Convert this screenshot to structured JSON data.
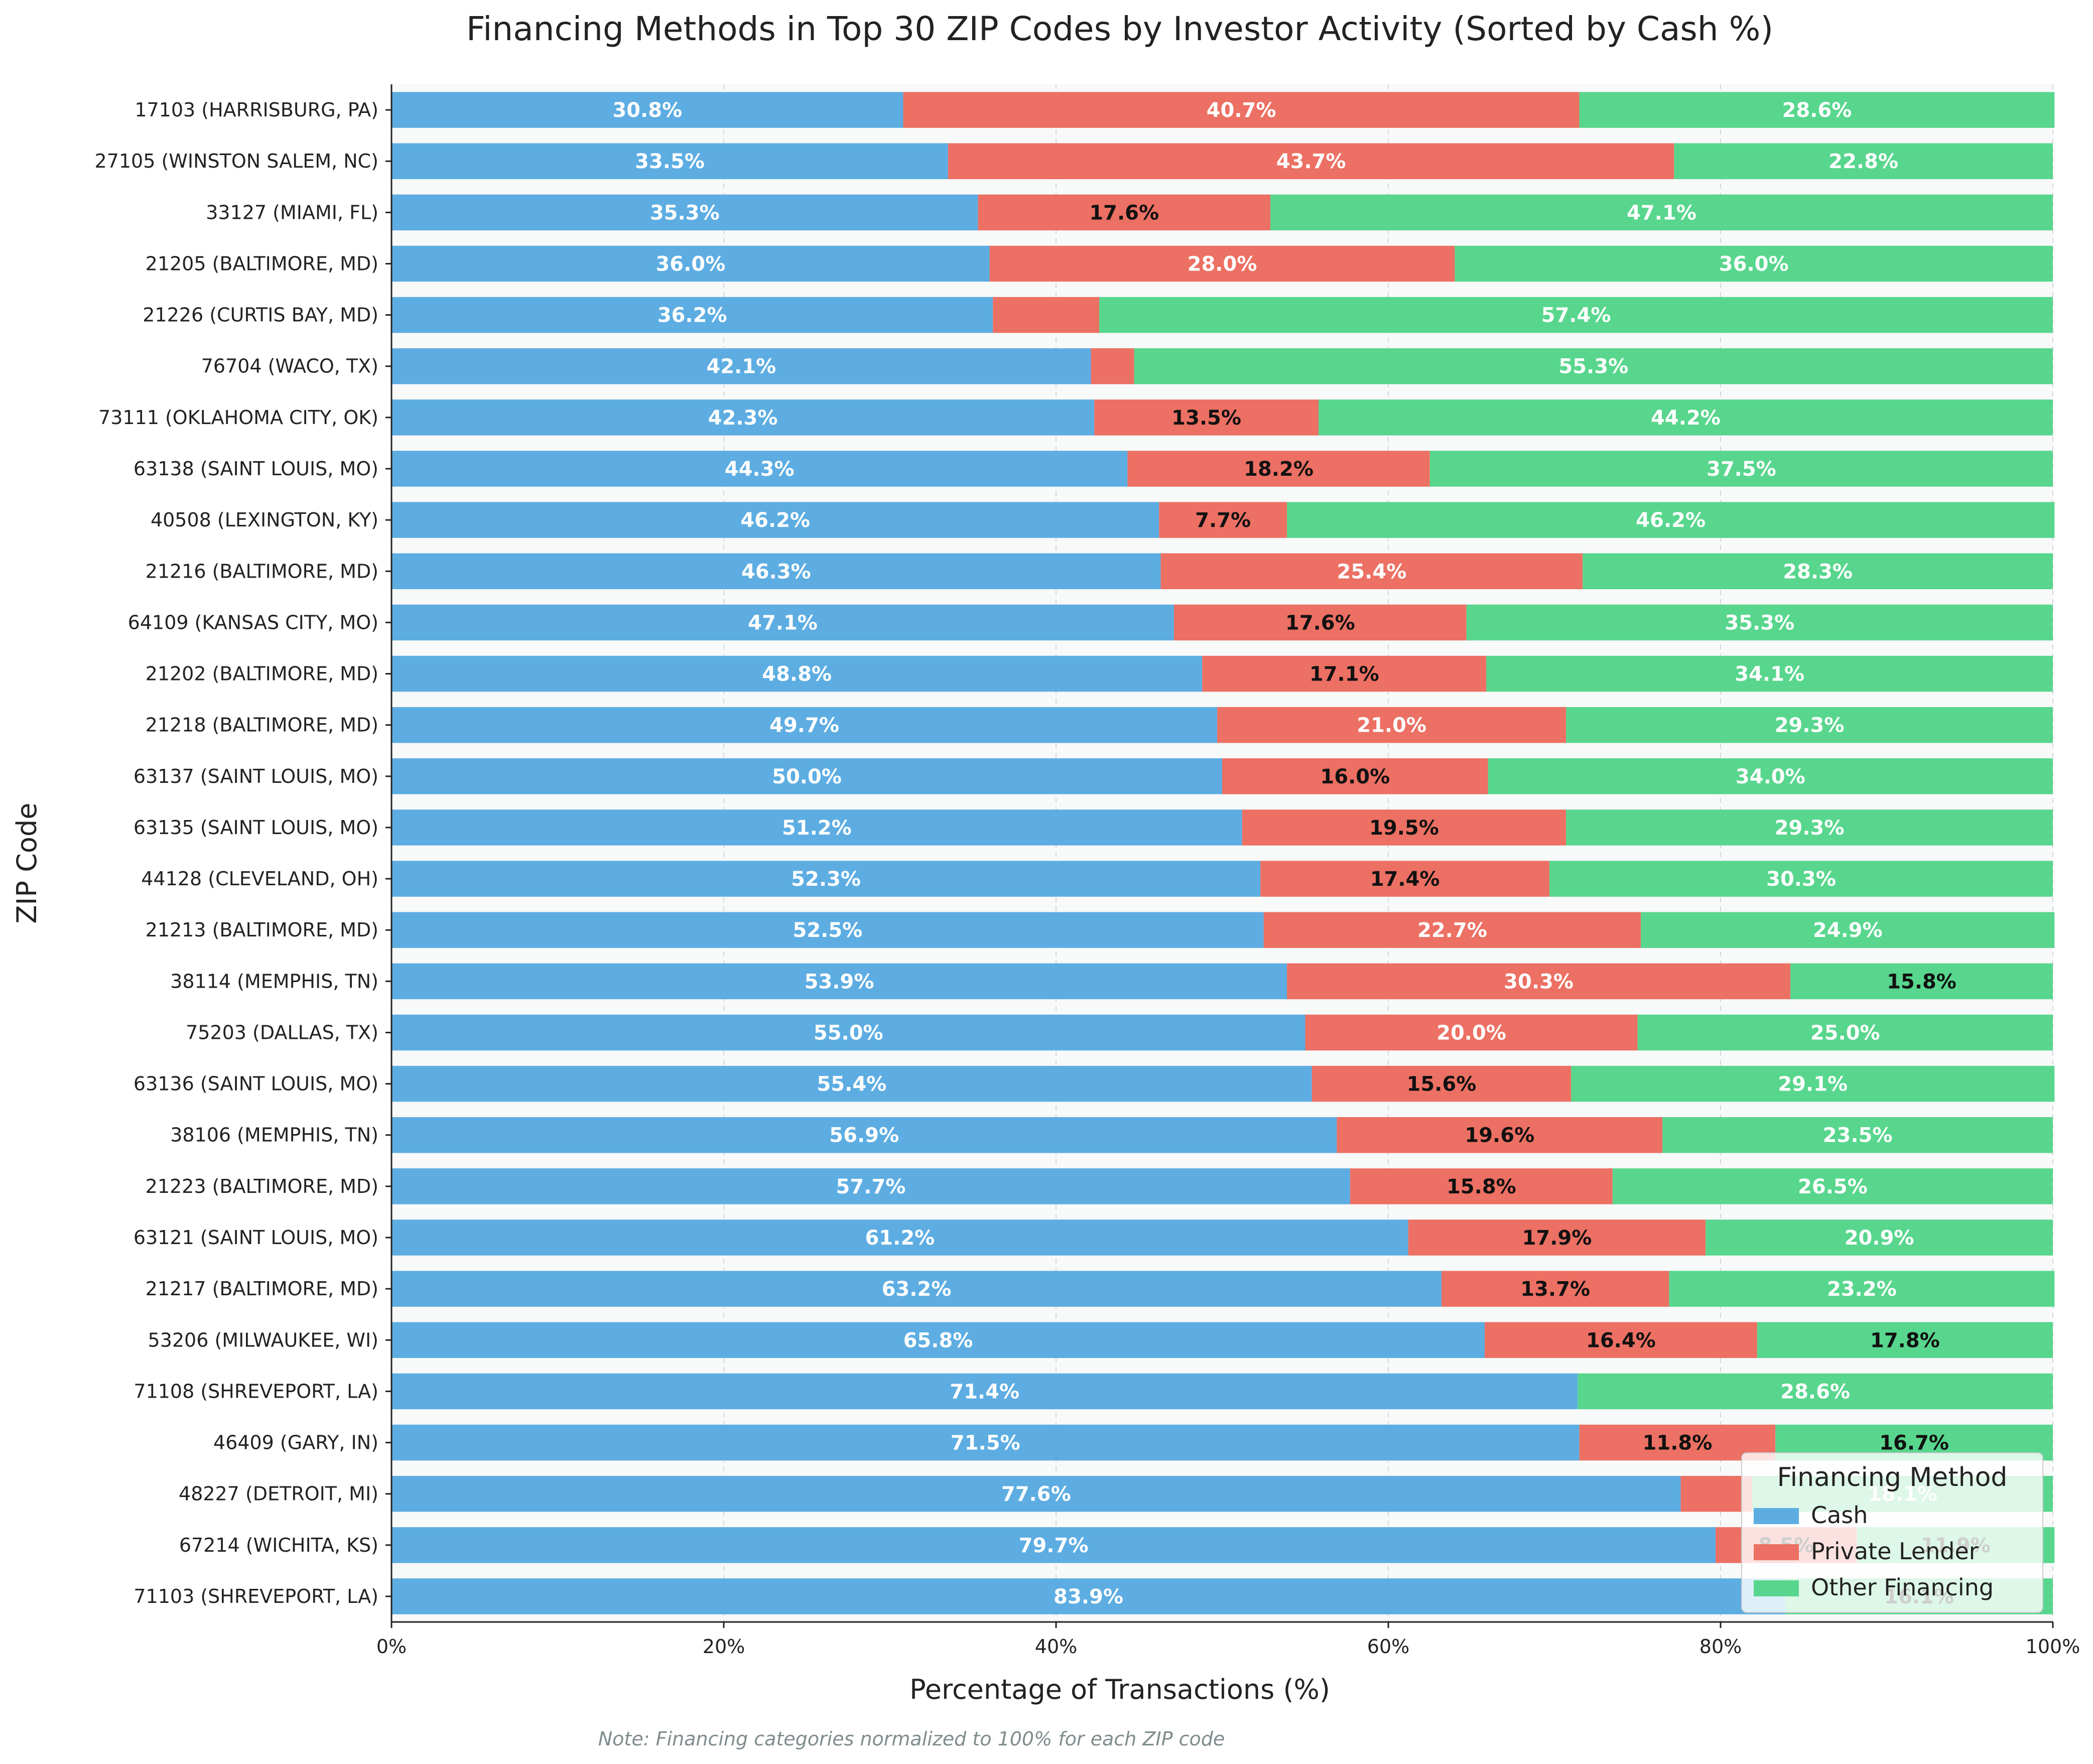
{
  "chart_data": {
    "type": "bar",
    "orientation": "horizontal",
    "stacked": true,
    "title": "Financing Methods in Top 30 ZIP Codes by Investor Activity (Sorted by Cash %)",
    "xlabel": "Percentage of Transactions (%)",
    "ylabel": "ZIP Code",
    "xlim": [
      0,
      100
    ],
    "xticks": [
      "0%",
      "20%",
      "40%",
      "60%",
      "80%",
      "100%"
    ],
    "xtick_values": [
      0,
      20,
      40,
      60,
      80,
      100
    ],
    "grid": true,
    "note": "Note: Financing categories normalized to 100% for each ZIP code",
    "legend": {
      "title": "Financing Method",
      "placement": "bottom-right"
    },
    "categories": [
      "17103 (HARRISBURG, PA)",
      "27105 (WINSTON SALEM, NC)",
      "33127 (MIAMI, FL)",
      "21205 (BALTIMORE, MD)",
      "21226 (CURTIS BAY, MD)",
      "76704 (WACO, TX)",
      "73111 (OKLAHOMA CITY, OK)",
      "63138 (SAINT LOUIS, MO)",
      "40508 (LEXINGTON, KY)",
      "21216 (BALTIMORE, MD)",
      "64109 (KANSAS CITY, MO)",
      "21202 (BALTIMORE, MD)",
      "21218 (BALTIMORE, MD)",
      "63137 (SAINT LOUIS, MO)",
      "63135 (SAINT LOUIS, MO)",
      "44128 (CLEVELAND, OH)",
      "21213 (BALTIMORE, MD)",
      "38114 (MEMPHIS, TN)",
      "75203 (DALLAS, TX)",
      "63136 (SAINT LOUIS, MO)",
      "38106 (MEMPHIS, TN)",
      "21223 (BALTIMORE, MD)",
      "63121 (SAINT LOUIS, MO)",
      "21217 (BALTIMORE, MD)",
      "53206 (MILWAUKEE, WI)",
      "71108 (SHREVEPORT, LA)",
      "46409 (GARY, IN)",
      "48227 (DETROIT, MI)",
      "67214 (WICHITA, KS)",
      "71103 (SHREVEPORT, LA)"
    ],
    "series": [
      {
        "name": "Cash",
        "color": "#5DADE2",
        "values": [
          30.8,
          33.5,
          35.3,
          36.0,
          36.2,
          42.1,
          42.3,
          44.3,
          46.2,
          46.3,
          47.1,
          48.8,
          49.7,
          50.0,
          51.2,
          52.3,
          52.5,
          53.9,
          55.0,
          55.4,
          56.9,
          57.7,
          61.2,
          63.2,
          65.8,
          71.4,
          71.5,
          77.6,
          79.7,
          83.9
        ],
        "labels": [
          "30.8%",
          "33.5%",
          "35.3%",
          "36.0%",
          "36.2%",
          "42.1%",
          "42.3%",
          "44.3%",
          "46.2%",
          "46.3%",
          "47.1%",
          "48.8%",
          "49.7%",
          "50.0%",
          "51.2%",
          "52.3%",
          "52.5%",
          "53.9%",
          "55.0%",
          "55.4%",
          "56.9%",
          "57.7%",
          "61.2%",
          "63.2%",
          "65.8%",
          "71.4%",
          "71.5%",
          "77.6%",
          "79.7%",
          "83.9%"
        ]
      },
      {
        "name": "Private Lender",
        "color": "#EC7063",
        "values": [
          40.7,
          43.7,
          17.6,
          28.0,
          6.4,
          2.6,
          13.5,
          18.2,
          7.7,
          25.4,
          17.6,
          17.1,
          21.0,
          16.0,
          19.5,
          17.4,
          22.7,
          30.3,
          20.0,
          15.6,
          19.6,
          15.8,
          17.9,
          13.7,
          16.4,
          0.0,
          11.8,
          4.3,
          8.5,
          0.0
        ],
        "labels": [
          "40.7%",
          "43.7%",
          "17.6%",
          "28.0%",
          "",
          "",
          "13.5%",
          "18.2%",
          "7.7%",
          "25.4%",
          "17.6%",
          "17.1%",
          "21.0%",
          "16.0%",
          "19.5%",
          "17.4%",
          "22.7%",
          "30.3%",
          "20.0%",
          "15.6%",
          "19.6%",
          "15.8%",
          "17.9%",
          "13.7%",
          "16.4%",
          "",
          "11.8%",
          "",
          "8.5%",
          ""
        ]
      },
      {
        "name": "Other Financing",
        "color": "#58D68D",
        "values": [
          28.6,
          22.8,
          47.1,
          36.0,
          57.4,
          55.3,
          44.2,
          37.5,
          46.2,
          28.3,
          35.3,
          34.1,
          29.3,
          34.0,
          29.3,
          30.3,
          24.9,
          15.8,
          25.0,
          29.1,
          23.5,
          26.5,
          20.9,
          23.2,
          17.8,
          28.6,
          16.7,
          18.1,
          11.9,
          16.1
        ],
        "labels": [
          "28.6%",
          "22.8%",
          "47.1%",
          "36.0%",
          "57.4%",
          "55.3%",
          "44.2%",
          "37.5%",
          "46.2%",
          "28.3%",
          "35.3%",
          "34.1%",
          "29.3%",
          "34.0%",
          "29.3%",
          "30.3%",
          "24.9%",
          "15.8%",
          "25.0%",
          "29.1%",
          "23.5%",
          "26.5%",
          "20.9%",
          "23.2%",
          "17.8%",
          "28.6%",
          "16.7%",
          "18.1%",
          "11.9%",
          "16.1%"
        ]
      }
    ]
  }
}
